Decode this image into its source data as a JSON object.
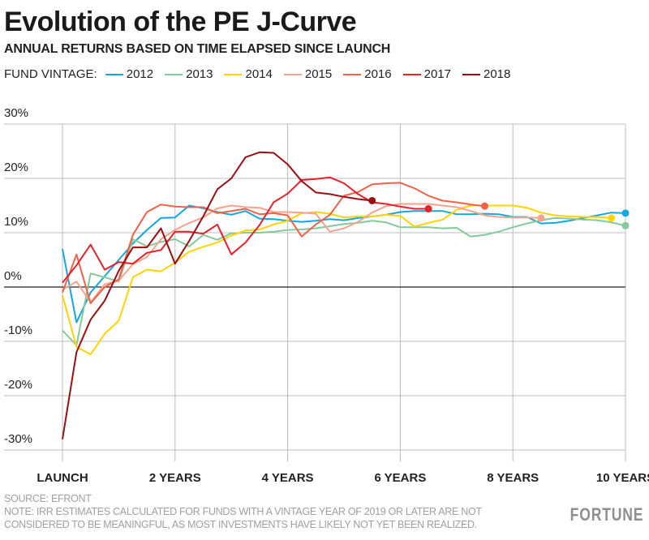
{
  "chart_data": {
    "type": "line",
    "title": "Evolution of the PE J-Curve",
    "subtitle": "ANNUAL RETURNS BASED ON TIME ELAPSED SINCE LAUNCH",
    "legend_label": "FUND VINTAGE:",
    "legend_placement": "top-left",
    "xlabel": "",
    "ylabel": "",
    "x_unit": "years since launch",
    "xlim": [
      0,
      10
    ],
    "ylim": [
      -30,
      30
    ],
    "grid": true,
    "x_ticks": [
      {
        "value": 0,
        "label": "LAUNCH"
      },
      {
        "value": 2,
        "label": "2 YEARS"
      },
      {
        "value": 4,
        "label": "4 YEARS"
      },
      {
        "value": 6,
        "label": "6 YEARS"
      },
      {
        "value": 8,
        "label": "8 YEARS"
      },
      {
        "value": 10,
        "label": "10 YEARS"
      }
    ],
    "y_ticks": [
      {
        "value": 30,
        "label": "30%"
      },
      {
        "value": 20,
        "label": "20%"
      },
      {
        "value": 10,
        "label": "10%"
      },
      {
        "value": 0,
        "label": "0%"
      },
      {
        "value": -10,
        "label": "-10%"
      },
      {
        "value": -20,
        "label": "-20%"
      },
      {
        "value": -30,
        "label": "-30%"
      }
    ],
    "x_step": 0.25,
    "series": [
      {
        "name": "2012",
        "color": "#12a8e0",
        "values": [
          7,
          -6.5,
          -1,
          2,
          5,
          8,
          10.5,
          12.7,
          12.8,
          15,
          14.5,
          13.8,
          13.3,
          14,
          12.6,
          12.5,
          12.2,
          12,
          12.2,
          12.5,
          12.3,
          12.7,
          13,
          13.3,
          13.8,
          14,
          14,
          14,
          13.4,
          13.4,
          13.5,
          13.4,
          12.9,
          12.9,
          11.7,
          11.8,
          12.2,
          12.7,
          13.2,
          13.7,
          13.6
        ]
      },
      {
        "name": "2013",
        "color": "#86c99a",
        "values": [
          -8,
          -10.7,
          2.5,
          1.8,
          1,
          8.8,
          7.5,
          8.3,
          8.8,
          7.5,
          9.6,
          8.7,
          9.9,
          10,
          10,
          10.2,
          10.5,
          10.6,
          10.8,
          11.2,
          11.6,
          11.8,
          12.2,
          11.9,
          11,
          11,
          11,
          10.8,
          10.9,
          9.3,
          9.6,
          10.2,
          11,
          11.7,
          12.3,
          12.7,
          12.6,
          12.4,
          12.3,
          11.9,
          11.3
        ]
      },
      {
        "name": "2014",
        "color": "#ffd400",
        "values": [
          -1.5,
          -11,
          -12.4,
          -8.6,
          -6.2,
          1.8,
          3.2,
          2.9,
          4.5,
          6.5,
          7.4,
          8.2,
          9.5,
          10.4,
          10.6,
          11.5,
          12.2,
          13.6,
          13.8,
          13.5,
          12.8,
          13,
          13,
          13.3,
          13.1,
          11.1,
          11.8,
          12.4,
          14.2,
          15,
          15,
          15,
          15,
          14.6,
          13.7,
          13.2,
          13,
          12.9,
          12.9,
          12.7
        ]
      },
      {
        "name": "2015",
        "color": "#f6a38d",
        "values": [
          -0.5,
          1,
          -2.8,
          0.5,
          1.2,
          4.2,
          5.5,
          8.8,
          10.5,
          11.8,
          12.8,
          14.5,
          15,
          14.7,
          14.6,
          13.8,
          13.8,
          13.7,
          13.5,
          10.2,
          10.8,
          12,
          13.7,
          14.9,
          15.3,
          15.3,
          15.3,
          15,
          14.7,
          14,
          13.2,
          12.9,
          12.8,
          12.8,
          12.7
        ]
      },
      {
        "name": "2016",
        "color": "#f0624a",
        "values": [
          -1,
          6,
          -3,
          0,
          1.4,
          9.6,
          13.8,
          15.2,
          14.8,
          14.7,
          14.7,
          13.6,
          14,
          14.4,
          13.4,
          13.6,
          13.2,
          9.3,
          11.5,
          13.3,
          16.8,
          17.5,
          18.9,
          19.1,
          19.2,
          18.2,
          16.8,
          15.9,
          15.6,
          15.2,
          14.9
        ]
      },
      {
        "name": "2017",
        "color": "#e8202a",
        "values": [
          0.8,
          4,
          7.8,
          3.2,
          4.6,
          4.3,
          6.3,
          6.8,
          10.2,
          10.2,
          9.8,
          11.5,
          6,
          8.2,
          11.4,
          15.6,
          17.2,
          19.7,
          19.9,
          20.2,
          19.1,
          17.1,
          15.6,
          15.3,
          14.8,
          14.4,
          14.4
        ]
      },
      {
        "name": "2018",
        "color": "#9b0e12",
        "values": [
          -28,
          -12,
          -6,
          -2.5,
          3,
          7.3,
          7.3,
          10.8,
          4.3,
          8.5,
          13,
          18,
          20,
          23.9,
          24.8,
          24.7,
          22.6,
          19.5,
          17.4,
          17.1,
          16.6,
          16.2,
          15.9
        ]
      }
    ]
  },
  "footer": {
    "source": "SOURCE: EFRONT",
    "note_line1": "NOTE: IRR ESTIMATES CALCULATED FOR FUNDS WITH A VINTAGE YEAR OF 2019 OR LATER ARE NOT",
    "note_line2": "CONSIDERED TO BE MEANINGFUL, AS MOST INVESTMENTS HAVE LIKELY NOT YET BEEN REALIZED.",
    "logo": "FORTUNE"
  }
}
